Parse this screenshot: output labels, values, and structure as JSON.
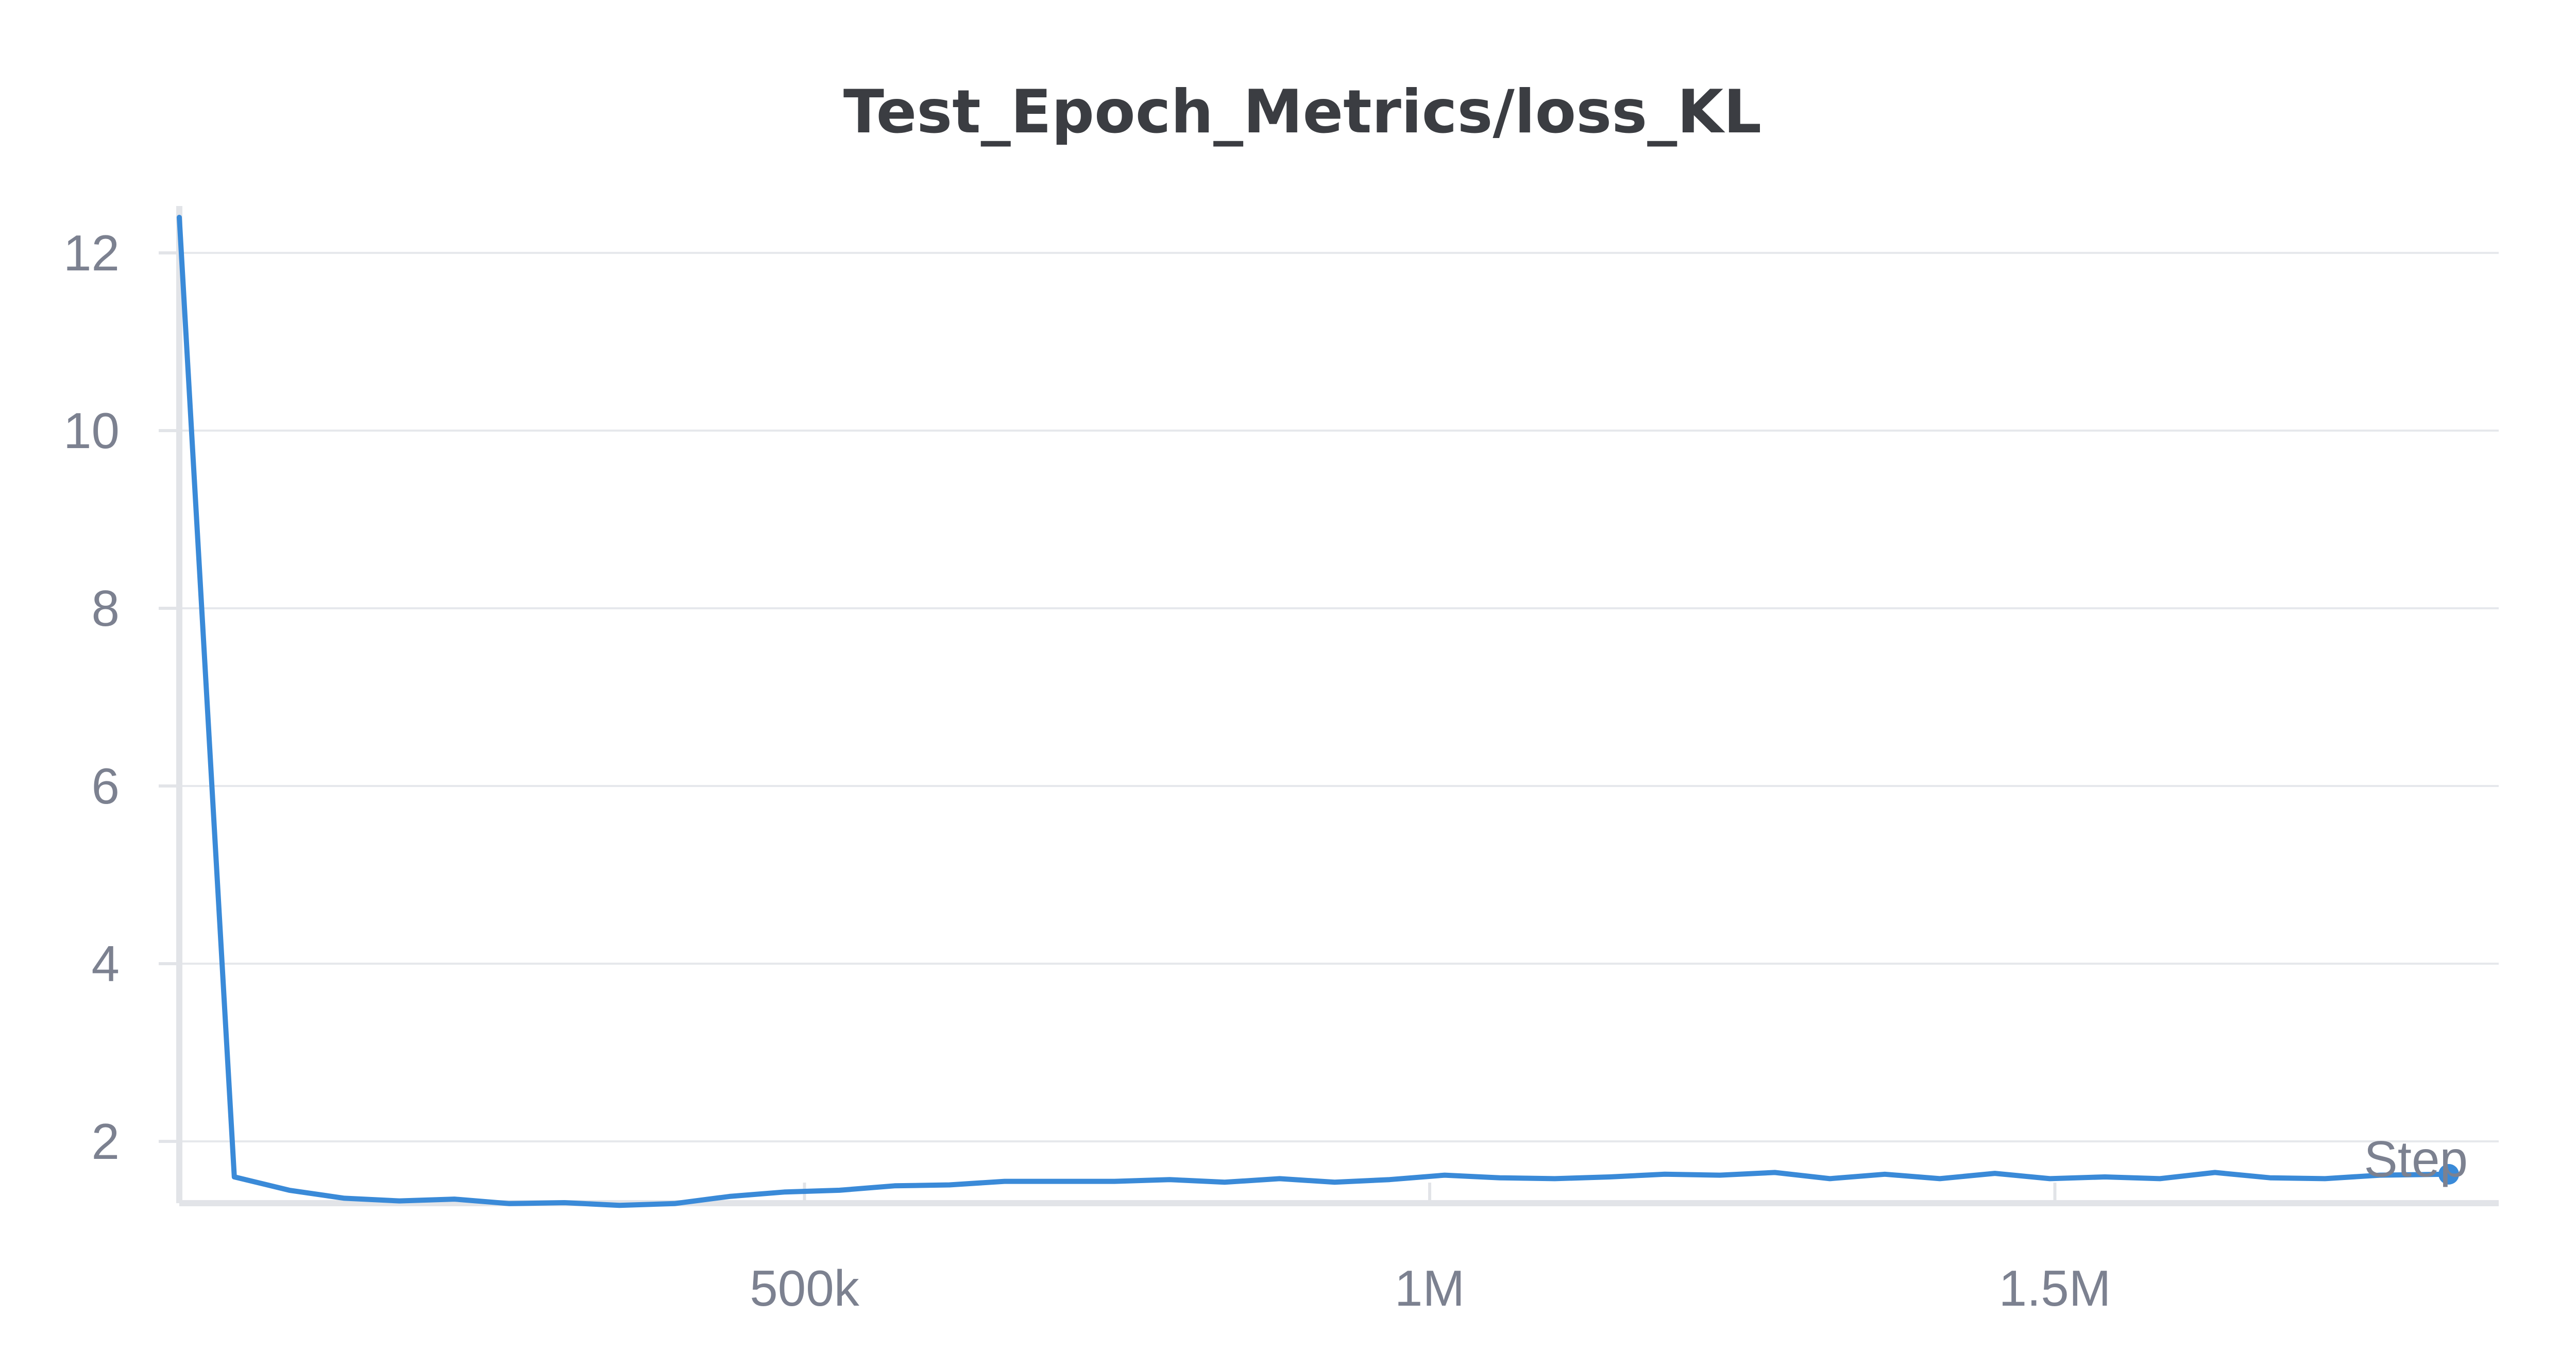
{
  "chart_data": {
    "type": "line",
    "title": "Test_Epoch_Metrics/loss_KL",
    "xlabel": "Step",
    "ylabel": "",
    "xlim": [
      0,
      1820000
    ],
    "ylim": [
      1.25,
      12.5
    ],
    "x_ticks": [
      {
        "value": 500000,
        "label": "500k"
      },
      {
        "value": 1000000,
        "label": "1M"
      },
      {
        "value": 1500000,
        "label": "1.5M"
      }
    ],
    "y_ticks": [
      {
        "value": 2,
        "label": "2"
      },
      {
        "value": 4,
        "label": "4"
      },
      {
        "value": 6,
        "label": "6"
      },
      {
        "value": 8,
        "label": "8"
      },
      {
        "value": 10,
        "label": "10"
      },
      {
        "value": 12,
        "label": "12"
      }
    ],
    "grid": true,
    "color": "#3a8ad8",
    "series": [
      {
        "x": [
          0,
          44000,
          88000,
          132000,
          176000,
          220000,
          264000,
          308000,
          352000,
          396000,
          440000,
          484000,
          528000,
          572000,
          616000,
          660000,
          704000,
          748000,
          792000,
          836000,
          880000,
          924000,
          968000,
          1012000,
          1056000,
          1100000,
          1144000,
          1188000,
          1232000,
          1276000,
          1320000,
          1364000,
          1408000,
          1452000,
          1496000,
          1540000,
          1584000,
          1628000,
          1672000,
          1716000,
          1760000,
          1815000
        ],
        "y": [
          12.4,
          1.6,
          1.45,
          1.36,
          1.33,
          1.35,
          1.3,
          1.31,
          1.28,
          1.3,
          1.38,
          1.43,
          1.45,
          1.5,
          1.51,
          1.55,
          1.55,
          1.55,
          1.57,
          1.54,
          1.58,
          1.54,
          1.57,
          1.62,
          1.59,
          1.58,
          1.6,
          1.63,
          1.62,
          1.65,
          1.58,
          1.63,
          1.58,
          1.64,
          1.58,
          1.6,
          1.58,
          1.65,
          1.59,
          1.58,
          1.62,
          1.63
        ]
      }
    ]
  }
}
